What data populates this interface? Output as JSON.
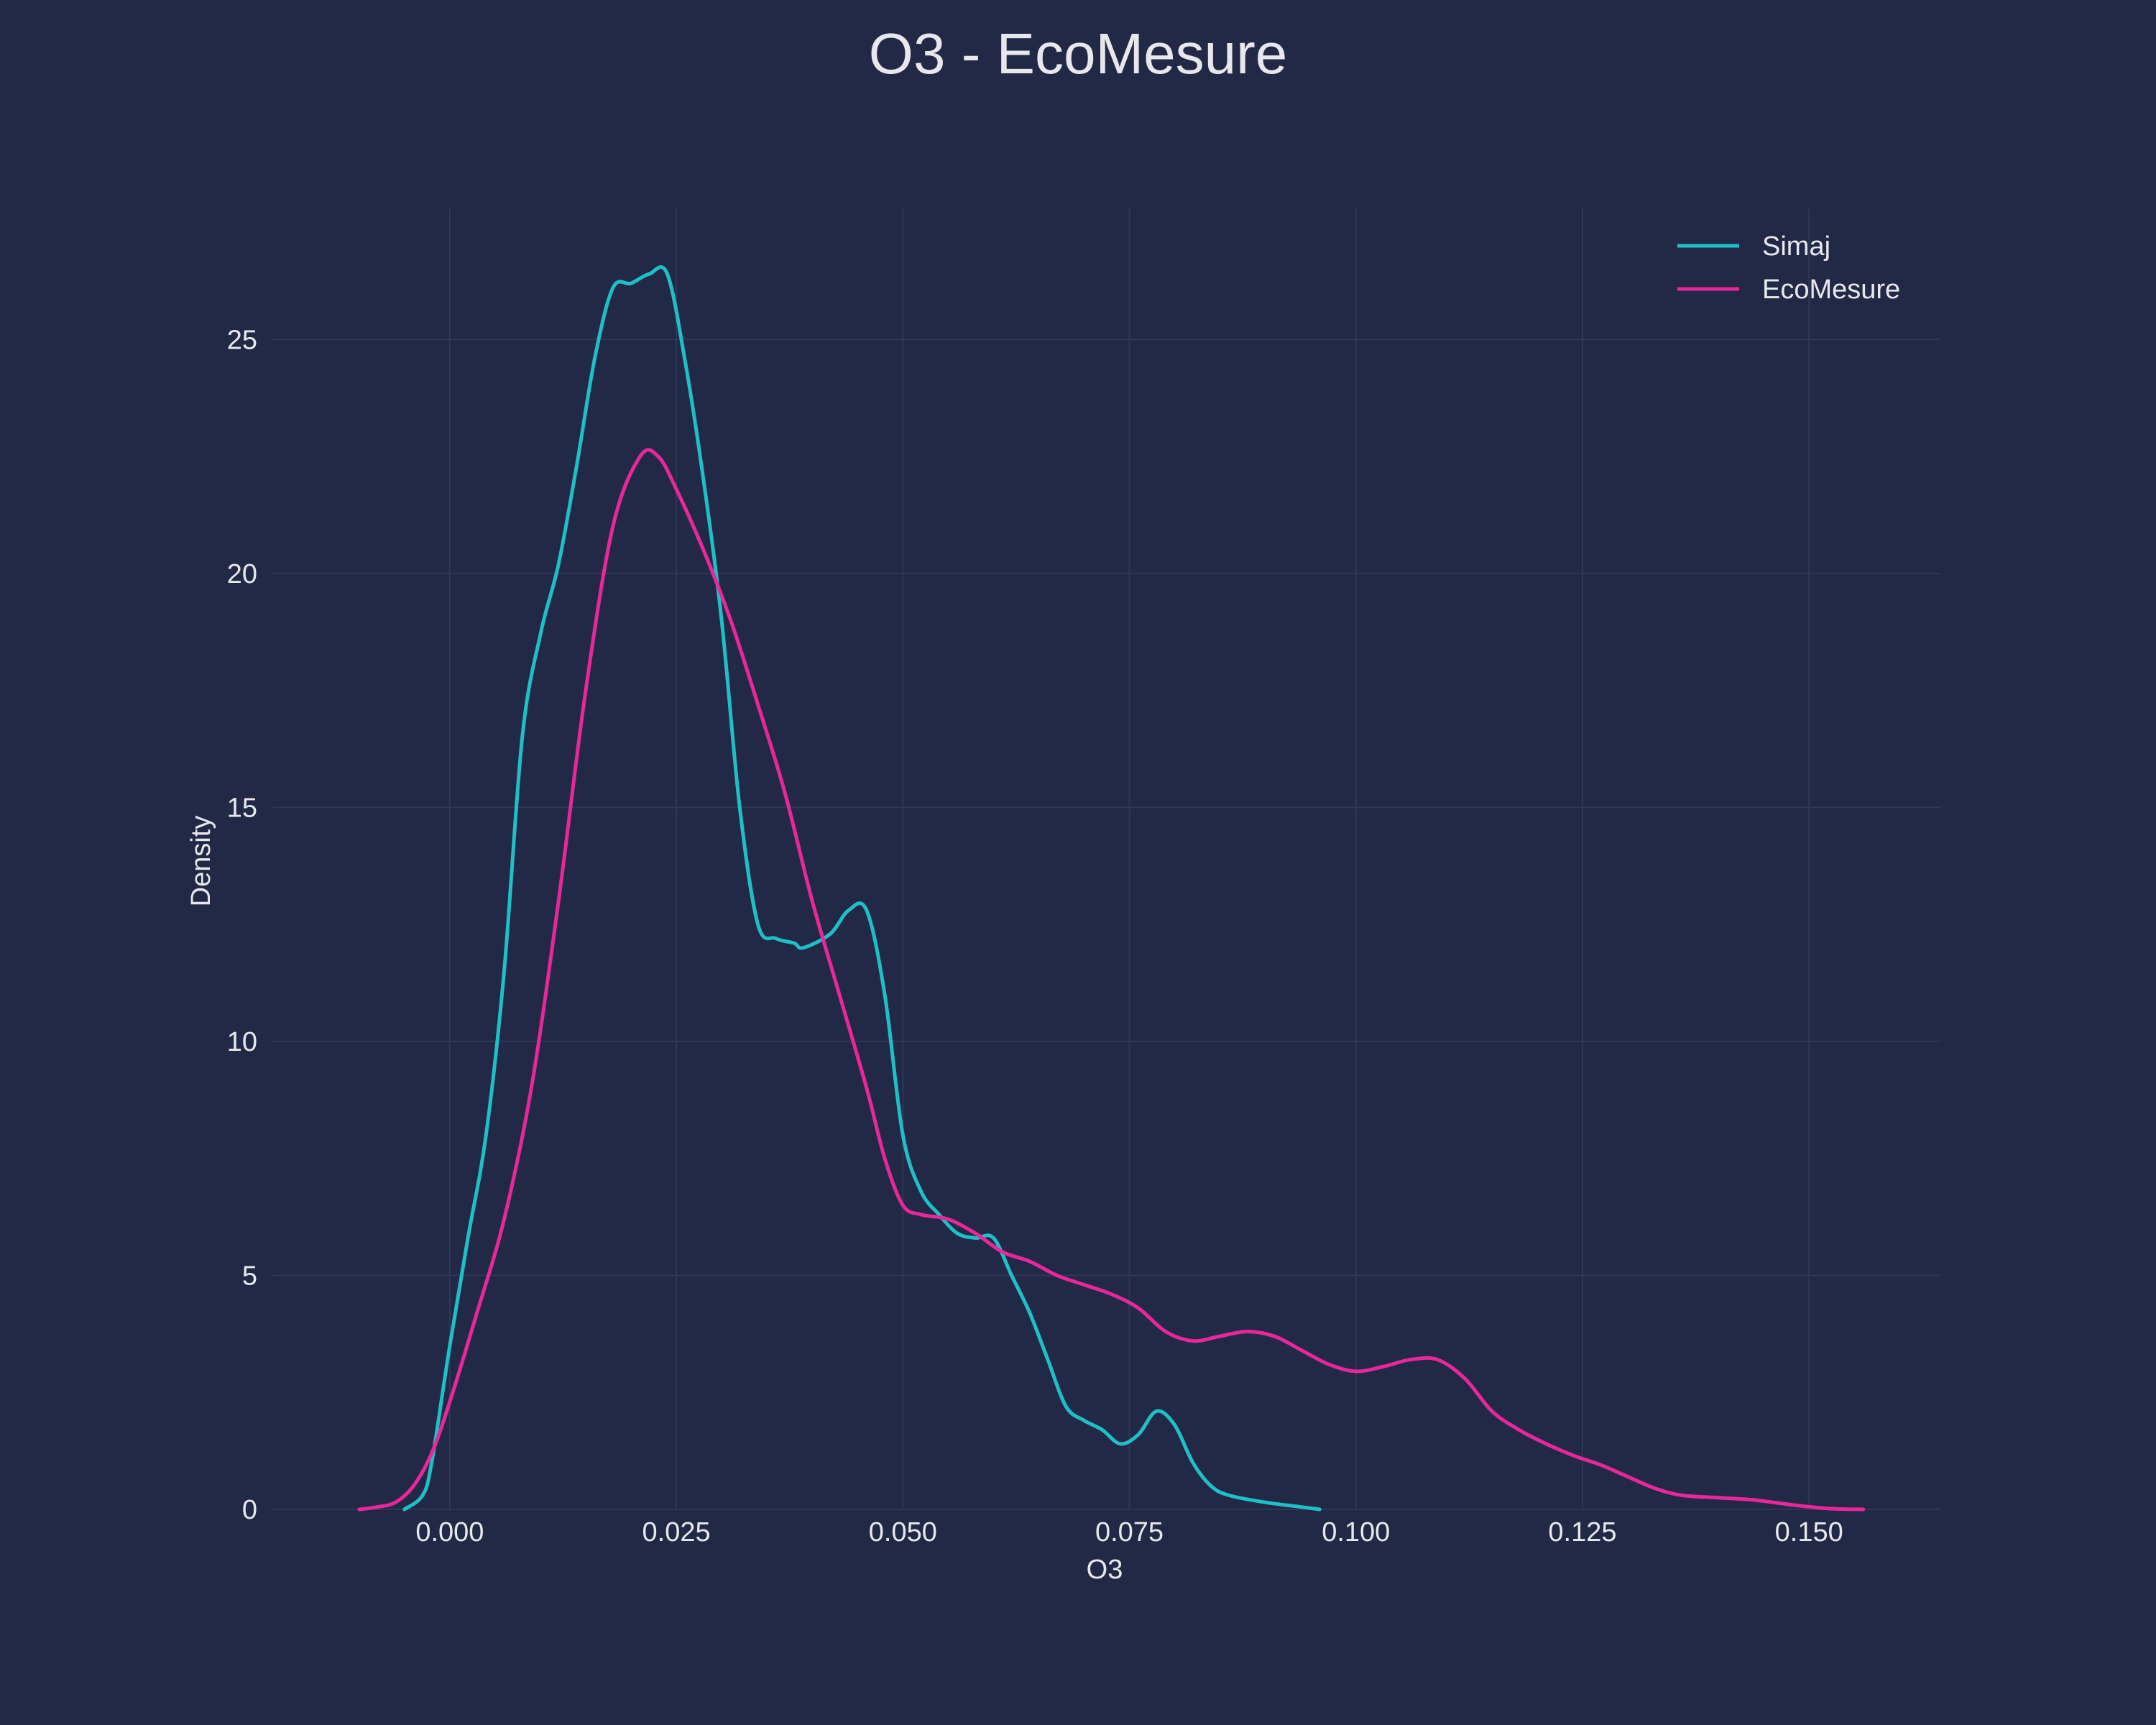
{
  "chart_data": {
    "type": "line",
    "title": "O3 - EcoMesure",
    "xlabel": "O3",
    "ylabel": "Density",
    "xlim": [
      -0.0195,
      0.1645
    ],
    "ylim": [
      0,
      27.8
    ],
    "grid": true,
    "legend_position": "top-right",
    "x_ticks": [
      0.0,
      0.025,
      0.05,
      0.075,
      0.1,
      0.125,
      0.15
    ],
    "x_tick_labels": [
      "0.000",
      "0.025",
      "0.050",
      "0.075",
      "0.100",
      "0.125",
      "0.150"
    ],
    "y_ticks": [
      0,
      5,
      10,
      15,
      20,
      25
    ],
    "y_tick_labels": [
      "0",
      "5",
      "10",
      "15",
      "20",
      "25"
    ],
    "colors": {
      "background": "#222946",
      "grid": "#2E3757",
      "text": "#E8E8EC"
    },
    "series": [
      {
        "name": "Simaj",
        "color": "#1FBFC7",
        "x": [
          -0.005,
          -0.003,
          -0.002,
          0.0,
          0.002,
          0.004,
          0.006,
          0.008,
          0.01,
          0.012,
          0.014,
          0.016,
          0.018,
          0.02,
          0.022,
          0.024,
          0.026,
          0.028,
          0.03,
          0.032,
          0.034,
          0.036,
          0.038,
          0.039,
          0.042,
          0.044,
          0.046,
          0.048,
          0.05,
          0.052,
          0.054,
          0.056,
          0.058,
          0.06,
          0.062,
          0.064,
          0.066,
          0.068,
          0.07,
          0.072,
          0.074,
          0.076,
          0.078,
          0.08,
          0.082,
          0.084,
          0.086,
          0.09,
          0.094,
          0.096
        ],
        "y": [
          0.0,
          0.3,
          1.0,
          3.5,
          5.8,
          8.0,
          11.5,
          16.5,
          18.7,
          20.2,
          22.3,
          24.6,
          26.1,
          26.2,
          26.4,
          26.4,
          24.5,
          22.0,
          19.0,
          15.0,
          12.5,
          12.2,
          12.1,
          12.0,
          12.3,
          12.8,
          12.8,
          11.0,
          8.0,
          6.8,
          6.3,
          5.9,
          5.8,
          5.8,
          5.0,
          4.2,
          3.2,
          2.2,
          1.9,
          1.7,
          1.4,
          1.6,
          2.1,
          1.8,
          1.0,
          0.5,
          0.3,
          0.15,
          0.05,
          0.0
        ]
      },
      {
        "name": "EcoMesure",
        "color": "#E8289A",
        "x": [
          -0.01,
          -0.008,
          -0.006,
          -0.004,
          -0.002,
          0.0,
          0.003,
          0.006,
          0.009,
          0.012,
          0.015,
          0.018,
          0.021,
          0.023,
          0.025,
          0.028,
          0.031,
          0.034,
          0.037,
          0.04,
          0.043,
          0.046,
          0.048,
          0.05,
          0.052,
          0.055,
          0.058,
          0.061,
          0.064,
          0.067,
          0.07,
          0.073,
          0.076,
          0.079,
          0.082,
          0.085,
          0.088,
          0.091,
          0.094,
          0.097,
          0.1,
          0.103,
          0.106,
          0.109,
          0.112,
          0.115,
          0.118,
          0.121,
          0.124,
          0.127,
          0.13,
          0.133,
          0.136,
          0.14,
          0.144,
          0.148,
          0.152,
          0.156
        ],
        "y": [
          0.0,
          0.05,
          0.15,
          0.5,
          1.2,
          2.3,
          4.2,
          6.2,
          9.0,
          13.0,
          17.5,
          21.0,
          22.5,
          22.5,
          21.8,
          20.5,
          19.0,
          17.2,
          15.3,
          13.0,
          11.0,
          9.0,
          7.5,
          6.5,
          6.3,
          6.2,
          5.9,
          5.5,
          5.3,
          5.0,
          4.8,
          4.6,
          4.3,
          3.8,
          3.6,
          3.7,
          3.8,
          3.7,
          3.4,
          3.1,
          2.95,
          3.05,
          3.2,
          3.2,
          2.8,
          2.1,
          1.7,
          1.4,
          1.15,
          0.95,
          0.7,
          0.45,
          0.3,
          0.25,
          0.2,
          0.1,
          0.02,
          0.0
        ]
      }
    ]
  }
}
